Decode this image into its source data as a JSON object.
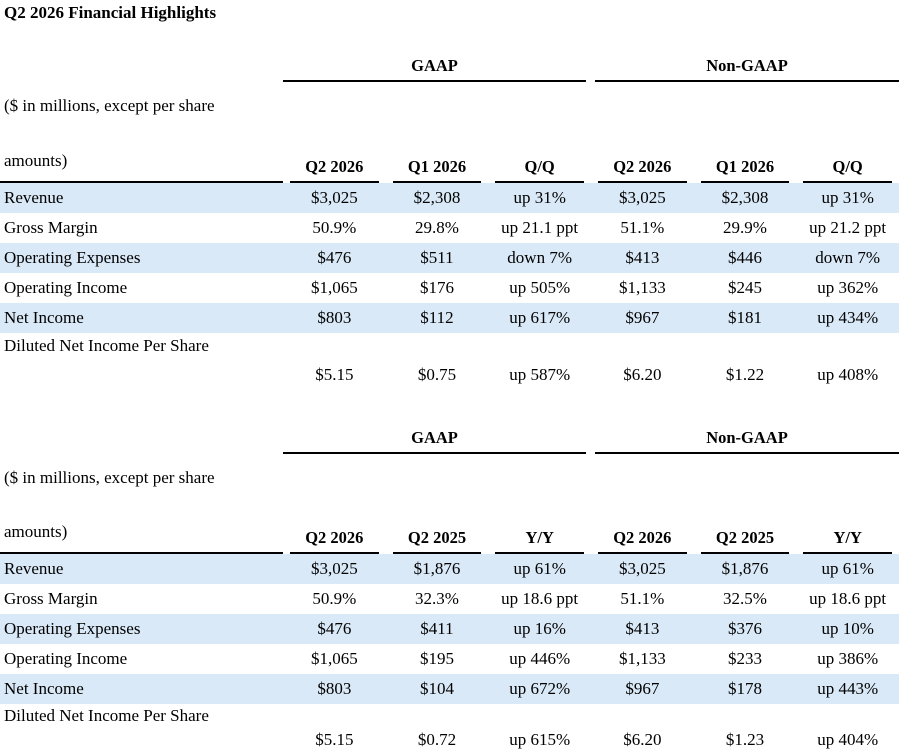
{
  "page_title": "Q2 2026 Financial Highlights",
  "colors": {
    "stripe": "#D9E9F7",
    "rule": "#000000"
  },
  "tables": [
    {
      "id": "qoq",
      "group_headers": [
        "GAAP",
        "Non-GAAP"
      ],
      "note_line1": "($ in millions, except per share",
      "note_line2": "amounts)",
      "columns": [
        "Q2 2026",
        "Q1 2026",
        "Q/Q",
        "Q2 2026",
        "Q1 2026",
        "Q/Q"
      ],
      "rows": [
        {
          "label": "Revenue",
          "shaded": true,
          "two_line": false,
          "values": [
            "$3,025",
            "$2,308",
            "up 31%",
            "$3,025",
            "$2,308",
            "up 31%"
          ]
        },
        {
          "label": "Gross Margin",
          "shaded": false,
          "two_line": false,
          "values": [
            "50.9%",
            "29.8%",
            "up 21.1 ppt",
            "51.1%",
            "29.9%",
            "up 21.2 ppt"
          ]
        },
        {
          "label": "Operating Expenses",
          "shaded": true,
          "two_line": false,
          "values": [
            "$476",
            "$511",
            "down 7%",
            "$413",
            "$446",
            "down 7%"
          ]
        },
        {
          "label": "Operating Income",
          "shaded": false,
          "two_line": false,
          "values": [
            "$1,065",
            "$176",
            "up 505%",
            "$1,133",
            "$245",
            "up 362%"
          ]
        },
        {
          "label": "Net Income",
          "shaded": true,
          "two_line": false,
          "values": [
            "$803",
            "$112",
            "up 617%",
            "$967",
            "$181",
            "up 434%"
          ]
        },
        {
          "label": "Diluted Net Income Per Share",
          "shaded": false,
          "two_line": true,
          "values": [
            "$5.15",
            "$0.75",
            "up 587%",
            "$6.20",
            "$1.22",
            "up 408%"
          ]
        }
      ]
    },
    {
      "id": "yoy",
      "group_headers": [
        "GAAP",
        "Non-GAAP"
      ],
      "note_line1": "($ in millions, except per share",
      "note_line2": "amounts)",
      "columns": [
        "Q2 2026",
        "Q2 2025",
        "Y/Y",
        "Q2 2026",
        "Q2 2025",
        "Y/Y"
      ],
      "rows": [
        {
          "label": "Revenue",
          "shaded": true,
          "two_line": false,
          "values": [
            "$3,025",
            "$1,876",
            "up 61%",
            "$3,025",
            "$1,876",
            "up 61%"
          ]
        },
        {
          "label": "Gross Margin",
          "shaded": false,
          "two_line": false,
          "values": [
            "50.9%",
            "32.3%",
            "up 18.6 ppt",
            "51.1%",
            "32.5%",
            "up 18.6 ppt"
          ]
        },
        {
          "label": "Operating Expenses",
          "shaded": true,
          "two_line": false,
          "values": [
            "$476",
            "$411",
            "up 16%",
            "$413",
            "$376",
            "up 10%"
          ]
        },
        {
          "label": "Operating Income",
          "shaded": false,
          "two_line": false,
          "values": [
            "$1,065",
            "$195",
            "up 446%",
            "$1,133",
            "$233",
            "up 386%"
          ]
        },
        {
          "label": "Net Income",
          "shaded": true,
          "two_line": false,
          "values": [
            "$803",
            "$104",
            "up 672%",
            "$967",
            "$178",
            "up 443%"
          ]
        },
        {
          "label": "Diluted Net Income Per Share",
          "shaded": false,
          "two_line": true,
          "values": [
            "$5.15",
            "$0.72",
            "up 615%",
            "$6.20",
            "$1.23",
            "up 404%"
          ]
        }
      ]
    }
  ]
}
